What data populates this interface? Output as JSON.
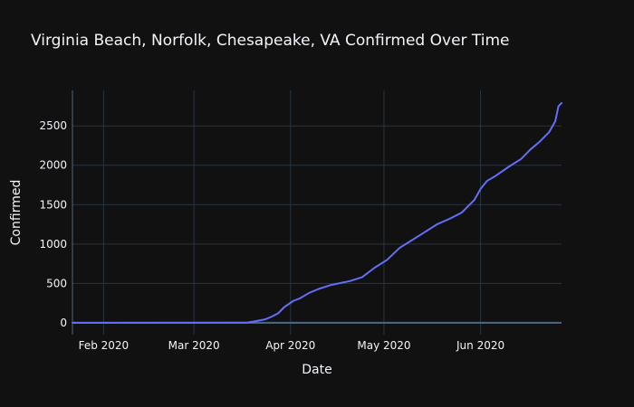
{
  "chart_data": {
    "type": "line",
    "title": "Virginia Beach, Norfolk, Chesapeake, VA Confirmed Over Time",
    "xlabel": "Date",
    "ylabel": "Confirmed",
    "x_ticks": [
      {
        "date": "2020-02-01",
        "label": "Feb 2020"
      },
      {
        "date": "2020-03-01",
        "label": "Mar 2020"
      },
      {
        "date": "2020-04-01",
        "label": "Apr 2020"
      },
      {
        "date": "2020-05-01",
        "label": "May 2020"
      },
      {
        "date": "2020-06-01",
        "label": "Jun 2020"
      }
    ],
    "y_ticks": [
      0,
      500,
      1000,
      1500,
      2000,
      2500
    ],
    "xlim": [
      "2020-01-22",
      "2020-06-27"
    ],
    "ylim": [
      -150,
      2950
    ],
    "grid": true,
    "line_color": "#636efa",
    "series": [
      {
        "x": [
          "2020-01-22",
          "2020-03-18",
          "2020-03-20",
          "2020-03-24",
          "2020-03-26",
          "2020-03-28",
          "2020-03-30",
          "2020-04-02",
          "2020-04-04",
          "2020-04-07",
          "2020-04-10",
          "2020-04-14",
          "2020-04-20",
          "2020-04-24",
          "2020-04-28",
          "2020-05-02",
          "2020-05-06",
          "2020-05-10",
          "2020-05-14",
          "2020-05-18",
          "2020-05-22",
          "2020-05-26",
          "2020-05-30",
          "2020-06-01",
          "2020-06-03",
          "2020-06-06",
          "2020-06-10",
          "2020-06-14",
          "2020-06-17",
          "2020-06-20",
          "2020-06-23",
          "2020-06-25",
          "2020-06-26",
          "2020-06-27"
        ],
        "y": [
          0,
          3,
          15,
          45,
          80,
          120,
          200,
          280,
          310,
          380,
          430,
          480,
          530,
          580,
          700,
          800,
          950,
          1050,
          1150,
          1250,
          1320,
          1400,
          1560,
          1700,
          1800,
          1870,
          1980,
          2080,
          2200,
          2300,
          2420,
          2560,
          2750,
          2790
        ]
      }
    ]
  }
}
